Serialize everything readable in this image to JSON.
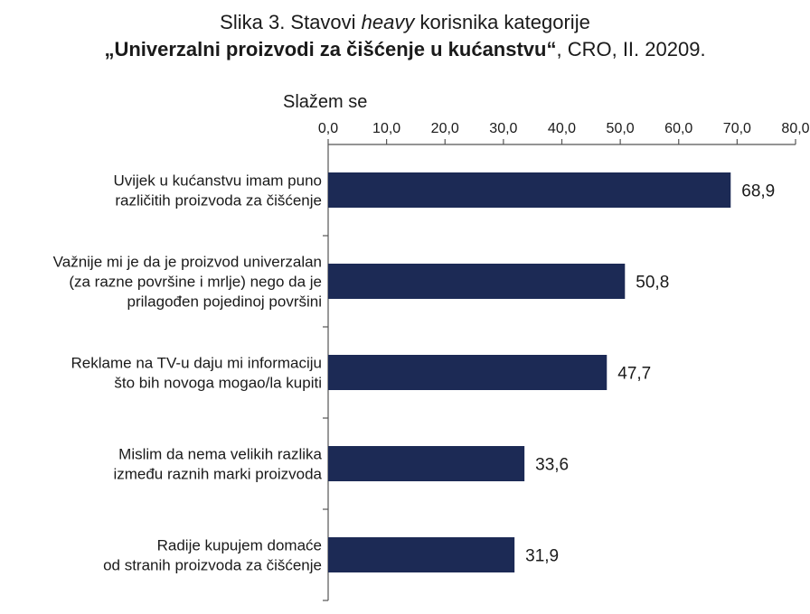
{
  "title": {
    "line1": [
      {
        "text": "Slika 3. Stavovi ",
        "style": "normal"
      },
      {
        "text": "heavy",
        "style": "italic"
      },
      {
        "text": " korisnika kategorije",
        "style": "normal"
      }
    ],
    "line2": [
      {
        "text": "„Univerzalni proizvodi za čišćenje u kućanstvu“",
        "style": "bold-italic"
      },
      {
        "text": ", CRO, II. 20209.",
        "style": "regular"
      }
    ]
  },
  "chart_data": {
    "type": "bar",
    "orientation": "horizontal",
    "axis_title": "Slažem se",
    "xlim": [
      0,
      80
    ],
    "ticks": [
      0,
      10,
      20,
      30,
      40,
      50,
      60,
      70,
      80
    ],
    "tick_labels": [
      "0,0",
      "10,0",
      "20,0",
      "30,0",
      "40,0",
      "50,0",
      "60,0",
      "70,0",
      "80,0"
    ],
    "axis_position": "top",
    "grid": false,
    "bar_color": "#1c2a55",
    "categories": [
      [
        "Uvijek u kućanstvu imam puno",
        "različitih proizvoda za čišćenje"
      ],
      [
        "Važnije mi je da je proizvod univerzalan",
        "(za razne površine i mrlje) nego da je",
        "prilagođen pojedinoj površini"
      ],
      [
        "Reklame na TV-u daju mi informaciju",
        "što bih novoga mogao/la kupiti"
      ],
      [
        "Mislim da nema velikih razlika",
        "između raznih marki proizvoda"
      ],
      [
        "Radije kupujem domaće",
        "od stranih proizvoda za čišćenje"
      ]
    ],
    "values": [
      68.9,
      50.8,
      47.7,
      33.6,
      31.9
    ],
    "value_labels": [
      "68,9",
      "50,8",
      "47,7",
      "33,6",
      "31,9"
    ]
  }
}
